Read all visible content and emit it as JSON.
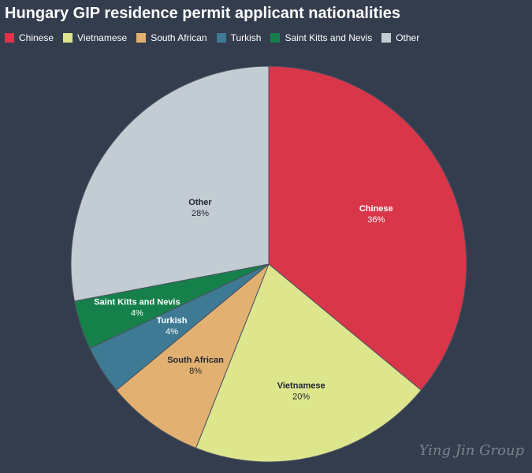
{
  "chart_data": {
    "type": "pie",
    "title": "Hungary GIP residence permit applicant nationalities",
    "slices": [
      {
        "label": "Chinese",
        "value": 36,
        "display": "36%",
        "color": "#d9364a",
        "label_color": "#ffffff"
      },
      {
        "label": "Vietnamese",
        "value": 20,
        "display": "20%",
        "color": "#dde68d",
        "label_color": "#1f2430"
      },
      {
        "label": "South African",
        "value": 8,
        "display": "8%",
        "color": "#e2b171",
        "label_color": "#1f2430"
      },
      {
        "label": "Turkish",
        "value": 4,
        "display": "4%",
        "color": "#3e7a93",
        "label_color": "#ffffff"
      },
      {
        "label": "Saint Kitts and Nevis",
        "value": 4,
        "display": "4%",
        "color": "#16804a",
        "label_color": "#ffffff"
      },
      {
        "label": "Other",
        "value": 28,
        "display": "28%",
        "color": "#c3ccd2",
        "label_color": "#1f2430"
      }
    ],
    "legend_position": "top-left"
  },
  "watermark": "Ying Jin Group"
}
